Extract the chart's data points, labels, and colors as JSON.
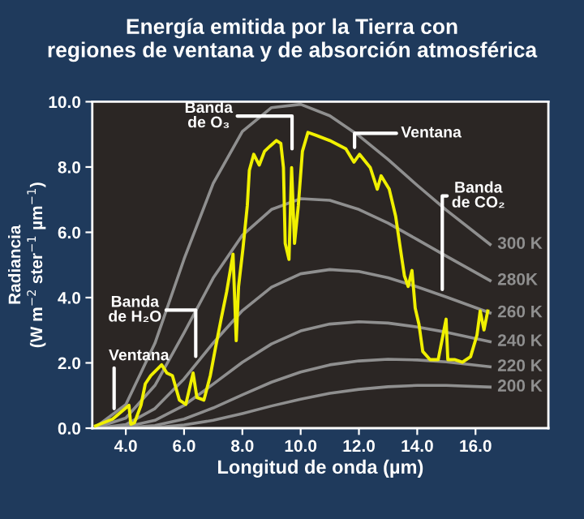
{
  "chart_data": {
    "type": "line",
    "title": "Energía emitida por la Tierra con\nregiones de ventana y de absorción atmosférica",
    "xlabel": "Longitud de onda (µm)",
    "ylabel": "Radiancia\n(W m$^{−2}$ ster$^{−1}$ µm$^{−1}$)",
    "xlim": [
      2.85,
      18.5
    ],
    "ylim": [
      0,
      10
    ],
    "xticks": [
      {
        "value": 4,
        "label": "4.0"
      },
      {
        "value": 6,
        "label": "6.0"
      },
      {
        "value": 8,
        "label": "8.0"
      },
      {
        "value": 10,
        "label": "10.0"
      },
      {
        "value": 12,
        "label": "12.0"
      },
      {
        "value": 14,
        "label": "14.0"
      },
      {
        "value": 16,
        "label": "16.0"
      }
    ],
    "yticks": [
      {
        "value": 0,
        "label": "0.0"
      },
      {
        "value": 2,
        "label": "2.0"
      },
      {
        "value": 4,
        "label": "4.0"
      },
      {
        "value": 6,
        "label": "6.0"
      },
      {
        "value": 8,
        "label": "8.0"
      },
      {
        "value": 10,
        "label": "10.0"
      }
    ],
    "grid": false,
    "legend": false,
    "marker": "none",
    "line_style": "solid",
    "series": [
      {
        "name": "300 K",
        "color": "#8f8f8f",
        "x": [
          3,
          4,
          5,
          6,
          7,
          8,
          9,
          10,
          11,
          12,
          13,
          14,
          15,
          16.5
        ],
        "values": [
          0.06,
          0.72,
          2.6,
          5.18,
          7.5,
          9.09,
          9.82,
          9.92,
          9.57,
          8.96,
          8.23,
          7.44,
          6.68,
          5.63
        ]
      },
      {
        "name": "280K",
        "color": "#8f8f8f",
        "x": [
          3,
          4,
          5,
          6,
          7,
          8,
          9,
          10,
          11,
          12,
          13,
          14,
          15,
          16.5
        ],
        "values": [
          0.02,
          0.31,
          1.31,
          2.92,
          4.6,
          5.91,
          6.7,
          7.03,
          6.98,
          6.7,
          6.28,
          5.78,
          5.27,
          4.52
        ]
      },
      {
        "name": "260 K",
        "color": "#8f8f8f",
        "x": [
          3,
          4,
          5,
          6,
          7,
          8,
          9,
          10,
          11,
          12,
          13,
          14,
          15,
          16.5
        ],
        "values": [
          0.0,
          0.11,
          0.6,
          1.51,
          2.61,
          3.6,
          4.32,
          4.73,
          4.86,
          4.8,
          4.61,
          4.33,
          4.02,
          3.53
        ]
      },
      {
        "name": "240 K",
        "color": "#8f8f8f",
        "x": [
          3,
          4,
          5,
          6,
          7,
          8,
          9,
          10,
          11,
          12,
          13,
          14,
          15,
          16.5
        ],
        "values": [
          0.0,
          0.04,
          0.24,
          0.7,
          1.35,
          2.02,
          2.58,
          2.98,
          3.19,
          3.26,
          3.22,
          3.1,
          2.94,
          2.65
        ]
      },
      {
        "name": "220 K",
        "color": "#8f8f8f",
        "x": [
          3,
          4,
          5,
          6,
          7,
          8,
          9,
          10,
          11,
          12,
          13,
          14,
          15,
          16.5
        ],
        "values": [
          0.0,
          0.01,
          0.08,
          0.28,
          0.62,
          1.02,
          1.41,
          1.72,
          1.94,
          2.06,
          2.11,
          2.09,
          2.03,
          1.88
        ]
      },
      {
        "name": "200 K",
        "color": "#8f8f8f",
        "x": [
          3,
          4,
          5,
          6,
          7,
          8,
          9,
          10,
          11,
          12,
          13,
          14,
          15,
          16.5
        ],
        "values": [
          0.0,
          0.0,
          0.02,
          0.1,
          0.24,
          0.45,
          0.68,
          0.89,
          1.07,
          1.19,
          1.27,
          1.31,
          1.31,
          1.26
        ]
      },
      {
        "color": "#f0f000",
        "x": [
          2.96,
          3.55,
          4.11,
          4.17,
          4.3,
          4.52,
          4.67,
          4.86,
          5.23,
          5.41,
          5.6,
          5.84,
          6.06,
          6.31,
          6.44,
          6.68,
          6.9,
          7.09,
          7.27,
          7.46,
          7.68,
          7.79,
          7.87,
          8.02,
          8.17,
          8.24,
          8.39,
          8.58,
          8.76,
          8.95,
          9.17,
          9.32,
          9.41,
          9.47,
          9.6,
          9.69,
          9.79,
          9.92,
          10.06,
          10.25,
          10.53,
          11.0,
          11.55,
          11.83,
          12.02,
          12.39,
          12.63,
          12.76,
          13.04,
          13.26,
          13.45,
          13.56,
          13.69,
          13.82,
          13.93,
          14.06,
          14.19,
          14.44,
          14.72,
          14.99,
          15.05,
          15.28,
          15.55,
          15.83,
          16.05,
          16.16,
          16.29,
          16.42
        ],
        "values": [
          0.07,
          0.28,
          0.7,
          0.12,
          0.17,
          0.7,
          1.36,
          1.61,
          1.94,
          1.69,
          1.61,
          0.86,
          0.73,
          1.69,
          0.94,
          0.86,
          1.61,
          2.52,
          3.34,
          4.17,
          5.33,
          2.68,
          4.34,
          5.5,
          6.82,
          7.9,
          8.39,
          8.06,
          8.48,
          8.64,
          8.81,
          8.72,
          7.98,
          5.66,
          5.17,
          7.98,
          5.66,
          6.82,
          8.48,
          9.06,
          8.97,
          8.81,
          8.56,
          8.15,
          8.39,
          7.98,
          7.32,
          7.73,
          7.32,
          6.49,
          5.33,
          4.67,
          4.34,
          4.83,
          3.68,
          3.18,
          2.35,
          2.1,
          2.1,
          3.34,
          2.1,
          2.1,
          2.02,
          2.19,
          2.85,
          3.59,
          3.01,
          3.59
        ]
      }
    ],
    "annotations": [
      {
        "text": "Ventana",
        "x": 3.6,
        "y": 0.6
      },
      {
        "text": "Banda\nde H₂O",
        "x": 6.4,
        "y": 2.2
      },
      "Banda\nde O₃",
      {
        "text": "Ventana",
        "x": 11.85,
        "y": 8.6
      },
      {
        "text": "Banda\nde CO₂",
        "x": 14.86,
        "y": 4.25
      }
    ]
  }
}
